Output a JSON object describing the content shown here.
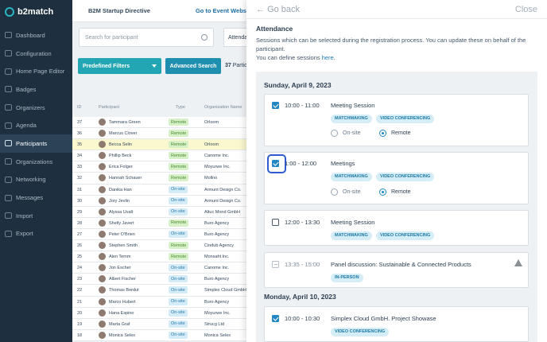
{
  "sidebar": {
    "logo": "b2match",
    "items": [
      {
        "label": "Dashboard",
        "icon": "dashboard-icon"
      },
      {
        "label": "Configuration",
        "icon": "gear-icon"
      },
      {
        "label": "Home Page Editor",
        "icon": "edit-icon"
      },
      {
        "label": "Badges",
        "icon": "badge-icon"
      },
      {
        "label": "Organizers",
        "icon": "organizers-icon"
      },
      {
        "label": "Agenda",
        "icon": "calendar-icon"
      },
      {
        "label": "Participants",
        "icon": "users-icon",
        "active": true
      },
      {
        "label": "Organizations",
        "icon": "building-icon"
      },
      {
        "label": "Networking",
        "icon": "network-icon"
      },
      {
        "label": "Messages",
        "icon": "message-icon"
      },
      {
        "label": "Import",
        "icon": "import-icon"
      },
      {
        "label": "Export",
        "icon": "export-icon"
      }
    ]
  },
  "topbar": {
    "title": "B2M Startup Directive",
    "goto": "Go to Event Websi"
  },
  "list": {
    "search_placeholder": "Search for participant",
    "attendance_select": "Attenda",
    "predefined_filters": "Predefined Filters",
    "advanced_search": "Advanced Search",
    "count_number": "37",
    "count_label": "Partic",
    "headers": {
      "id": "ID",
      "participant": "Participant",
      "type": "Type",
      "organization": "Organization Name"
    },
    "rows": [
      {
        "id": "37",
        "name": "Tammara Green",
        "type": "Remote",
        "org": "Orloom"
      },
      {
        "id": "36",
        "name": "Marcus Clover",
        "type": "Remote",
        "org": ""
      },
      {
        "id": "35",
        "name": "Becca Selin",
        "type": "Remote",
        "org": "Orloom",
        "highlight": true
      },
      {
        "id": "34",
        "name": "Phillip Beck",
        "type": "Remote",
        "org": "Canome Inc."
      },
      {
        "id": "33",
        "name": "Erica Folger",
        "type": "Remote",
        "org": "Moyurwe Inc."
      },
      {
        "id": "32",
        "name": "Hannah Schauer",
        "type": "Remote",
        "org": "Mollno"
      },
      {
        "id": "31",
        "name": "Danika Han",
        "type": "On-site",
        "org": "Armunt Design Co."
      },
      {
        "id": "30",
        "name": "Jory Jevlin",
        "type": "On-site",
        "org": "Armunt Design Co."
      },
      {
        "id": "29",
        "name": "Alyssa Uvalt",
        "type": "On-site",
        "org": "Altuc Mond GmbH"
      },
      {
        "id": "28",
        "name": "Shelly Javert",
        "type": "Remote",
        "org": "Buro Agency"
      },
      {
        "id": "27",
        "name": "Peter O'Brien",
        "type": "On-site",
        "org": "Buro Agency"
      },
      {
        "id": "26",
        "name": "Stephen Smith",
        "type": "Remote",
        "org": "Cindub Agency"
      },
      {
        "id": "25",
        "name": "Alen Temm",
        "type": "Remote",
        "org": "Monsaht Inc."
      },
      {
        "id": "24",
        "name": "Jon Escher",
        "type": "On-site",
        "org": "Canome Inc."
      },
      {
        "id": "23",
        "name": "Albert Fischer",
        "type": "On-site",
        "org": "Buro Agency"
      },
      {
        "id": "22",
        "name": "Thomas Berdut",
        "type": "On-site",
        "org": "Simplex Cloud GmbH"
      },
      {
        "id": "21",
        "name": "Marco Hubert",
        "type": "On-site",
        "org": "Buro Agency"
      },
      {
        "id": "20",
        "name": "Hana Espino",
        "type": "On-site",
        "org": "Moyurwe Inc."
      },
      {
        "id": "19",
        "name": "Marta Graf",
        "type": "On-site",
        "org": "Strucg Ltd"
      },
      {
        "id": "18",
        "name": "Monica Seles",
        "type": "On-site",
        "org": "Monica Seles"
      }
    ]
  },
  "panel": {
    "back": "Go back",
    "close": "Close",
    "title": "Attendance",
    "desc_1": "Sessions which can be selected during the registration process. You can update these on behalf of the participant.",
    "desc_2": "You can define sessions ",
    "desc_link": "here",
    "desc_end": ".",
    "days": [
      {
        "label": "Sunday, April 9, 2023"
      },
      {
        "label": "Monday, April 10, 2023"
      }
    ],
    "sessions": [
      {
        "time": "10:00 - 11:00",
        "name": "Meeting Session",
        "tags": [
          "MATCHMAKING",
          "VIDEO CONFERENCING"
        ],
        "onsite": "On-site",
        "remote": "Remote"
      },
      {
        "time": "1:00 - 12:00",
        "name": "Meetings",
        "tags": [
          "MATCHMAKING",
          "VIDEO CONFERENCING"
        ],
        "onsite": "On-site",
        "remote": "Remote"
      },
      {
        "time": "12:00 - 13:30",
        "name": "Meeting Session",
        "tags": [
          "MATCHMAKING",
          "VIDEO CONFERENCING"
        ]
      },
      {
        "time": "13:35 - 15:00",
        "name": "Panel discussion: Sustainable & Connected Products",
        "tags": [
          "IN-PERSON"
        ]
      },
      {
        "time": "10:00 - 10:30",
        "name": "Simplex Cloud GmbH. Project Showase",
        "tags": [
          "VIDEO CONFERENCING"
        ]
      }
    ]
  },
  "colors": {
    "accent": "#22a6b3",
    "checkbox": "#2387c3",
    "highlight_ring": "#2f5bd3",
    "sidebar": "#1e2f3f"
  }
}
